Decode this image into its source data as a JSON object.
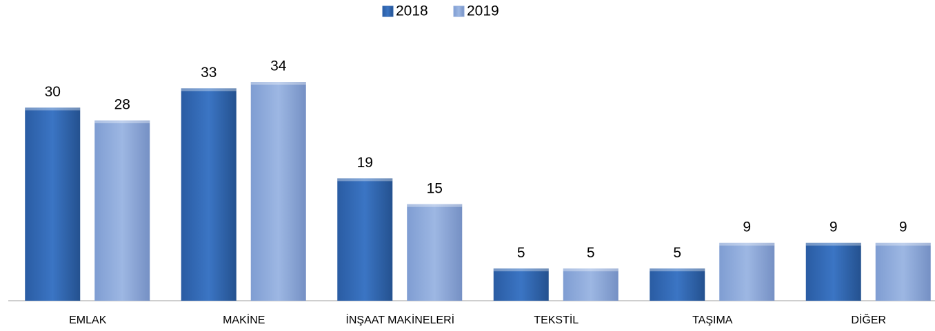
{
  "chart_data": {
    "type": "bar",
    "categories": [
      "EMLAK",
      "MAKİNE",
      "İNŞAAT MAKİNELERİ",
      "TEKSTİL",
      "TAŞIMA",
      "DİĞER"
    ],
    "series": [
      {
        "name": "2018",
        "color": "#2f65b0",
        "values": [
          30,
          33,
          19,
          5,
          5,
          9
        ]
      },
      {
        "name": "2019",
        "color": "#8eaadb",
        "values": [
          28,
          34,
          15,
          5,
          9,
          9
        ]
      }
    ],
    "legend": "top"
  }
}
